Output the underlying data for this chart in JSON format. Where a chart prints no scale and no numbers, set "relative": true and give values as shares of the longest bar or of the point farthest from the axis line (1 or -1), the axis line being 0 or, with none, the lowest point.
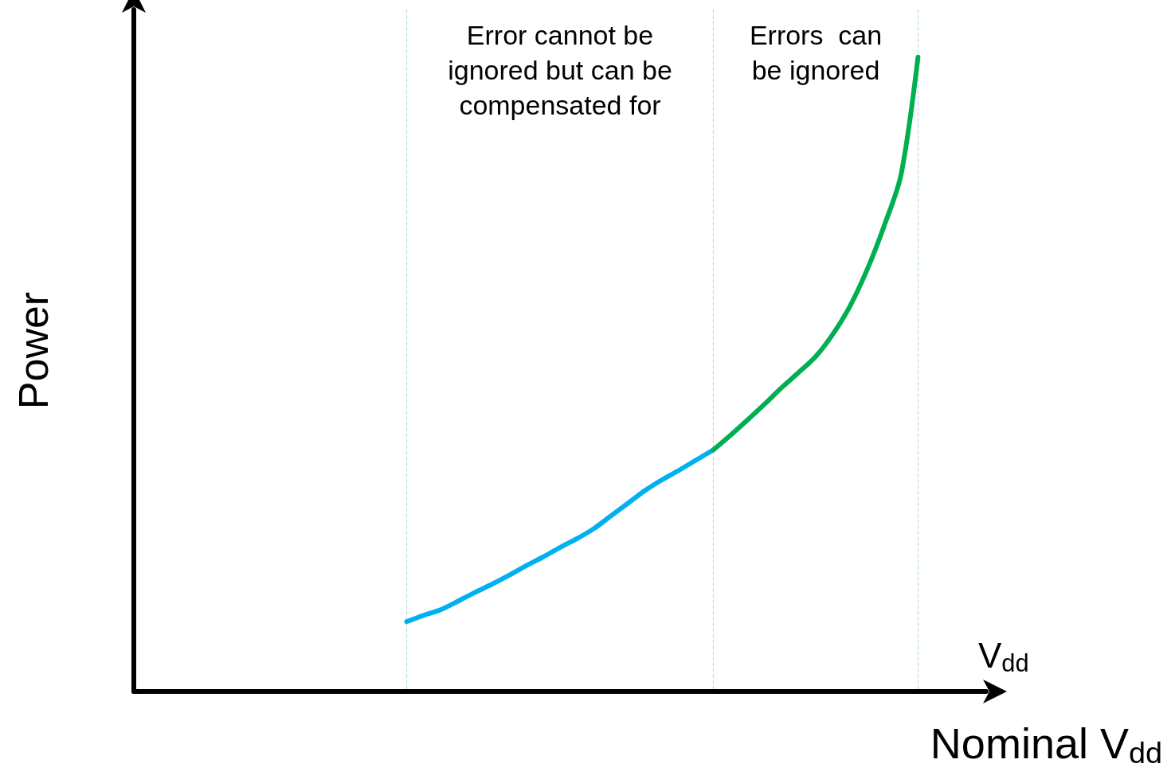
{
  "chart_data": {
    "type": "line",
    "relative": true,
    "xlabel": "V$_{dd}$",
    "ylabel": "Power",
    "grid": "x",
    "marker": "none",
    "line_style": "solid",
    "categories": [
      null,
      null,
      null,
      null,
      null,
      null,
      null,
      null,
      null,
      null,
      null,
      null,
      null,
      null,
      null,
      null,
      null,
      null,
      null,
      null,
      null,
      null,
      null,
      null,
      null,
      null,
      null,
      null,
      null,
      null,
      null,
      null,
      null,
      null,
      null,
      null,
      null,
      null,
      null,
      null,
      null,
      null,
      null,
      null,
      null,
      null,
      null,
      null,
      null,
      null,
      null
    ],
    "series": [
      {
        "color": "#00b0f0",
        "values": [
          null,
          null,
          null,
          null,
          null,
          null,
          null,
          null,
          null,
          null,
          null,
          null,
          null,
          null,
          null,
          null,
          0.11,
          0.12,
          0.129,
          0.142,
          0.156,
          0.169,
          0.183,
          0.198,
          0.212,
          0.227,
          0.241,
          0.257,
          0.277,
          0.297,
          0.317,
          0.334,
          0.349,
          0.365,
          0.381,
          null,
          null,
          null,
          null,
          null,
          null,
          null,
          null,
          null,
          null,
          null,
          null,
          null,
          null,
          null,
          null
        ]
      },
      {
        "color": "#00b050",
        "values": [
          null,
          null,
          null,
          null,
          null,
          null,
          null,
          null,
          null,
          null,
          null,
          null,
          null,
          null,
          null,
          null,
          null,
          null,
          null,
          null,
          null,
          null,
          null,
          null,
          null,
          null,
          null,
          null,
          null,
          null,
          null,
          null,
          null,
          null,
          0.381,
          0.404,
          0.428,
          0.453,
          0.479,
          0.503,
          0.528,
          0.563,
          0.607,
          0.664,
          0.733,
          0.814,
          1.0,
          null,
          null,
          null,
          null
        ]
      }
    ],
    "annotations": [
      "Error cannot be\nignored but can be\ncompensated for",
      "Errors  can\nbe ignored",
      "Nominal V$_{dd}$"
    ]
  }
}
